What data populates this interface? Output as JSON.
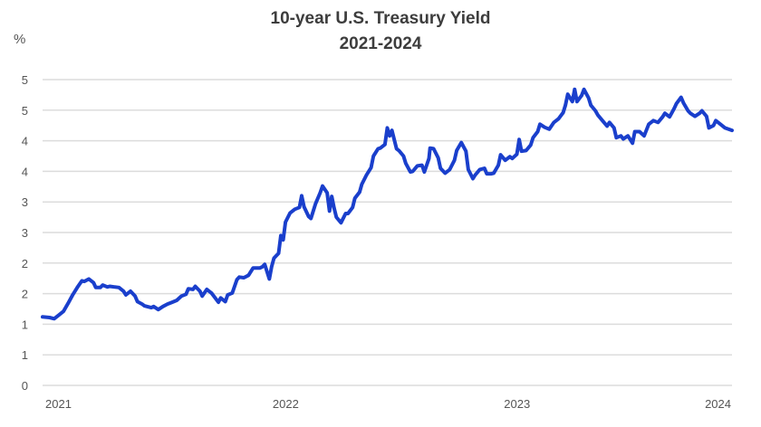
{
  "chart_data": {
    "type": "line",
    "title": "10-year U.S. Treasury Yield",
    "subtitle": "2021-2024",
    "ylabel": "%",
    "xlabel": "",
    "ylim": [
      0,
      5
    ],
    "xlim": [
      2021.0,
      2023.98
    ],
    "grid": true,
    "line_color": "#1a3fcc",
    "y_ticks": [
      {
        "value": 0,
        "label": "0"
      },
      {
        "value": 0.5,
        "label": "1"
      },
      {
        "value": 1,
        "label": "1"
      },
      {
        "value": 1.5,
        "label": "2"
      },
      {
        "value": 2,
        "label": "2"
      },
      {
        "value": 2.5,
        "label": "3"
      },
      {
        "value": 3,
        "label": "3"
      },
      {
        "value": 3.5,
        "label": "4"
      },
      {
        "value": 4,
        "label": "4"
      },
      {
        "value": 4.5,
        "label": "5"
      },
      {
        "value": 5,
        "label": "5"
      }
    ],
    "x_ticks": [
      {
        "value": 2021.0,
        "label": "2021"
      },
      {
        "value": 2022.0,
        "label": "2022"
      },
      {
        "value": 2023.0,
        "label": "2023"
      },
      {
        "value": 2023.98,
        "label": "2024"
      }
    ],
    "series": [
      {
        "name": "10-year U.S. Treasury Yield",
        "x": [
          2021.0,
          2021.03,
          2021.05,
          2021.07,
          2021.09,
          2021.11,
          2021.13,
          2021.15,
          2021.17,
          2021.18,
          2021.2,
          2021.22,
          2021.23,
          2021.25,
          2021.26,
          2021.28,
          2021.29,
          2021.31,
          2021.33,
          2021.35,
          2021.36,
          2021.38,
          2021.4,
          2021.41,
          2021.43,
          2021.44,
          2021.47,
          2021.48,
          2021.5,
          2021.52,
          2021.54,
          2021.56,
          2021.58,
          2021.6,
          2021.62,
          2021.63,
          2021.65,
          2021.66,
          2021.68,
          2021.69,
          2021.71,
          2021.73,
          2021.74,
          2021.76,
          2021.77,
          2021.79,
          2021.8,
          2021.82,
          2021.84,
          2021.85,
          2021.87,
          2021.89,
          2021.91,
          2021.94,
          2021.95,
          2021.96,
          2021.98,
          2021.99,
          2022.0,
          2022.02,
          2022.03,
          2022.04,
          2022.05,
          2022.07,
          2022.09,
          2022.11,
          2022.12,
          2022.13,
          2022.15,
          2022.16,
          2022.18,
          2022.2,
          2022.21,
          2022.23,
          2022.24,
          2022.25,
          2022.26,
          2022.27,
          2022.29,
          2022.31,
          2022.32,
          2022.34,
          2022.35,
          2022.37,
          2022.38,
          2022.4,
          2022.42,
          2022.43,
          2022.45,
          2022.46,
          2022.48,
          2022.49,
          2022.5,
          2022.51,
          2022.53,
          2022.54,
          2022.56,
          2022.57,
          2022.59,
          2022.6,
          2022.62,
          2022.64,
          2022.65,
          2022.67,
          2022.675,
          2022.69,
          2022.71,
          2022.72,
          2022.74,
          2022.76,
          2022.78,
          2022.79,
          2022.81,
          2022.83,
          2022.84,
          2022.86,
          2022.87,
          2022.89,
          2022.91,
          2022.92,
          2022.94,
          2022.95,
          2022.97,
          2022.98,
          2023.0,
          2023.02,
          2023.03,
          2023.05,
          2023.06,
          2023.07,
          2023.09,
          2023.11,
          2023.12,
          2023.14,
          2023.15,
          2023.17,
          2023.19,
          2023.21,
          2023.23,
          2023.25,
          2023.26,
          2023.27,
          2023.29,
          2023.3,
          2023.31,
          2023.33,
          2023.34,
          2023.36,
          2023.37,
          2023.39,
          2023.4,
          2023.42,
          2023.44,
          2023.45,
          2023.47,
          2023.48,
          2023.5,
          2023.51,
          2023.53,
          2023.55,
          2023.56,
          2023.58,
          2023.6,
          2023.62,
          2023.64,
          2023.66,
          2023.68,
          2023.69,
          2023.71,
          2023.73,
          2023.74,
          2023.76,
          2023.77,
          2023.79,
          2023.8,
          2023.82,
          2023.84,
          2023.85,
          2023.87,
          2023.88,
          2023.9,
          2023.91,
          2023.93,
          2023.95,
          2023.98
        ],
        "y": [
          1.12,
          1.11,
          1.09,
          1.15,
          1.21,
          1.34,
          1.48,
          1.6,
          1.71,
          1.7,
          1.74,
          1.68,
          1.6,
          1.6,
          1.64,
          1.61,
          1.62,
          1.61,
          1.6,
          1.54,
          1.48,
          1.54,
          1.46,
          1.37,
          1.33,
          1.3,
          1.27,
          1.29,
          1.24,
          1.29,
          1.33,
          1.36,
          1.39,
          1.46,
          1.49,
          1.58,
          1.57,
          1.62,
          1.54,
          1.46,
          1.57,
          1.51,
          1.46,
          1.36,
          1.43,
          1.37,
          1.48,
          1.51,
          1.73,
          1.77,
          1.76,
          1.8,
          1.92,
          1.92,
          1.94,
          1.98,
          1.74,
          1.94,
          2.08,
          2.16,
          2.45,
          2.38,
          2.67,
          2.82,
          2.88,
          2.91,
          3.1,
          2.92,
          2.76,
          2.73,
          2.97,
          3.15,
          3.26,
          3.15,
          2.85,
          3.09,
          2.9,
          2.75,
          2.66,
          2.81,
          2.81,
          2.91,
          3.06,
          3.16,
          3.29,
          3.44,
          3.56,
          3.75,
          3.87,
          3.88,
          3.94,
          4.21,
          4.08,
          4.17,
          3.87,
          3.84,
          3.75,
          3.63,
          3.49,
          3.5,
          3.59,
          3.6,
          3.49,
          3.71,
          3.88,
          3.87,
          3.72,
          3.55,
          3.47,
          3.53,
          3.68,
          3.84,
          3.97,
          3.83,
          3.53,
          3.38,
          3.44,
          3.53,
          3.55,
          3.46,
          3.46,
          3.47,
          3.6,
          3.77,
          3.68,
          3.74,
          3.71,
          3.78,
          4.02,
          3.83,
          3.84,
          3.93,
          4.05,
          4.15,
          4.27,
          4.22,
          4.19,
          4.3,
          4.36,
          4.46,
          4.58,
          4.76,
          4.64,
          4.84,
          4.64,
          4.74,
          4.84,
          4.7,
          4.58,
          4.49,
          4.42,
          4.33,
          4.24,
          4.3,
          4.21,
          4.05,
          4.08,
          4.03,
          4.08,
          3.96,
          4.15,
          4.15,
          4.08,
          4.27,
          4.33,
          4.3,
          4.39,
          4.45,
          4.39,
          4.53,
          4.61,
          4.71,
          4.62,
          4.49,
          4.45,
          4.4,
          4.45,
          4.49,
          4.4,
          4.21,
          4.25,
          4.33,
          4.27,
          4.21,
          4.17
        ]
      }
    ]
  }
}
